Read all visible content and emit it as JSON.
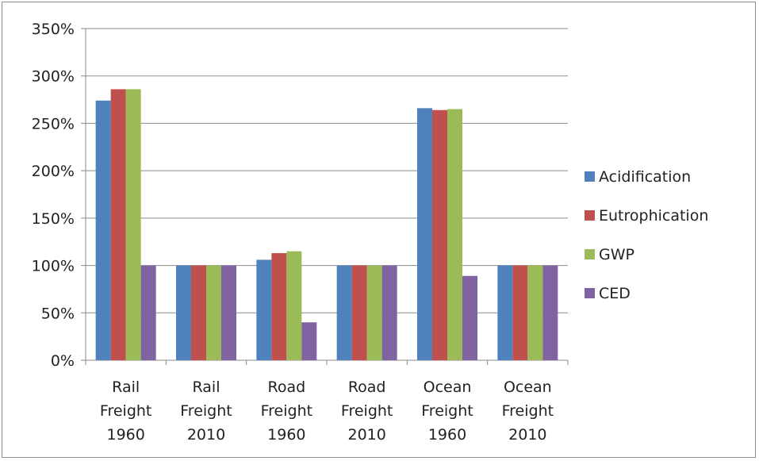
{
  "chart_data": {
    "type": "bar",
    "categories": [
      [
        "Rail",
        "Freight",
        "1960"
      ],
      [
        "Rail",
        "Freight",
        "2010"
      ],
      [
        "Road",
        "Freight",
        "1960"
      ],
      [
        "Road",
        "Freight",
        "2010"
      ],
      [
        "Ocean",
        "Freight",
        "1960"
      ],
      [
        "Ocean",
        "Freight",
        "2010"
      ]
    ],
    "series": [
      {
        "name": "Acidification",
        "color": "#4F81BD",
        "values": [
          274,
          100,
          106,
          100,
          266,
          100
        ]
      },
      {
        "name": "Eutrophication",
        "color": "#C0504D",
        "values": [
          286,
          100,
          113,
          100,
          264,
          100
        ]
      },
      {
        "name": "GWP",
        "color": "#9BBB59",
        "values": [
          286,
          100,
          115,
          100,
          265,
          100
        ]
      },
      {
        "name": "CED",
        "color": "#8064A2",
        "values": [
          100,
          100,
          40,
          100,
          89,
          100
        ]
      }
    ],
    "yticks": [
      "0%",
      "50%",
      "100%",
      "150%",
      "200%",
      "250%",
      "300%",
      "350%"
    ],
    "ylim": [
      0,
      350
    ],
    "grid": true,
    "legend": "right",
    "title": "",
    "xlabel": "",
    "ylabel": ""
  }
}
